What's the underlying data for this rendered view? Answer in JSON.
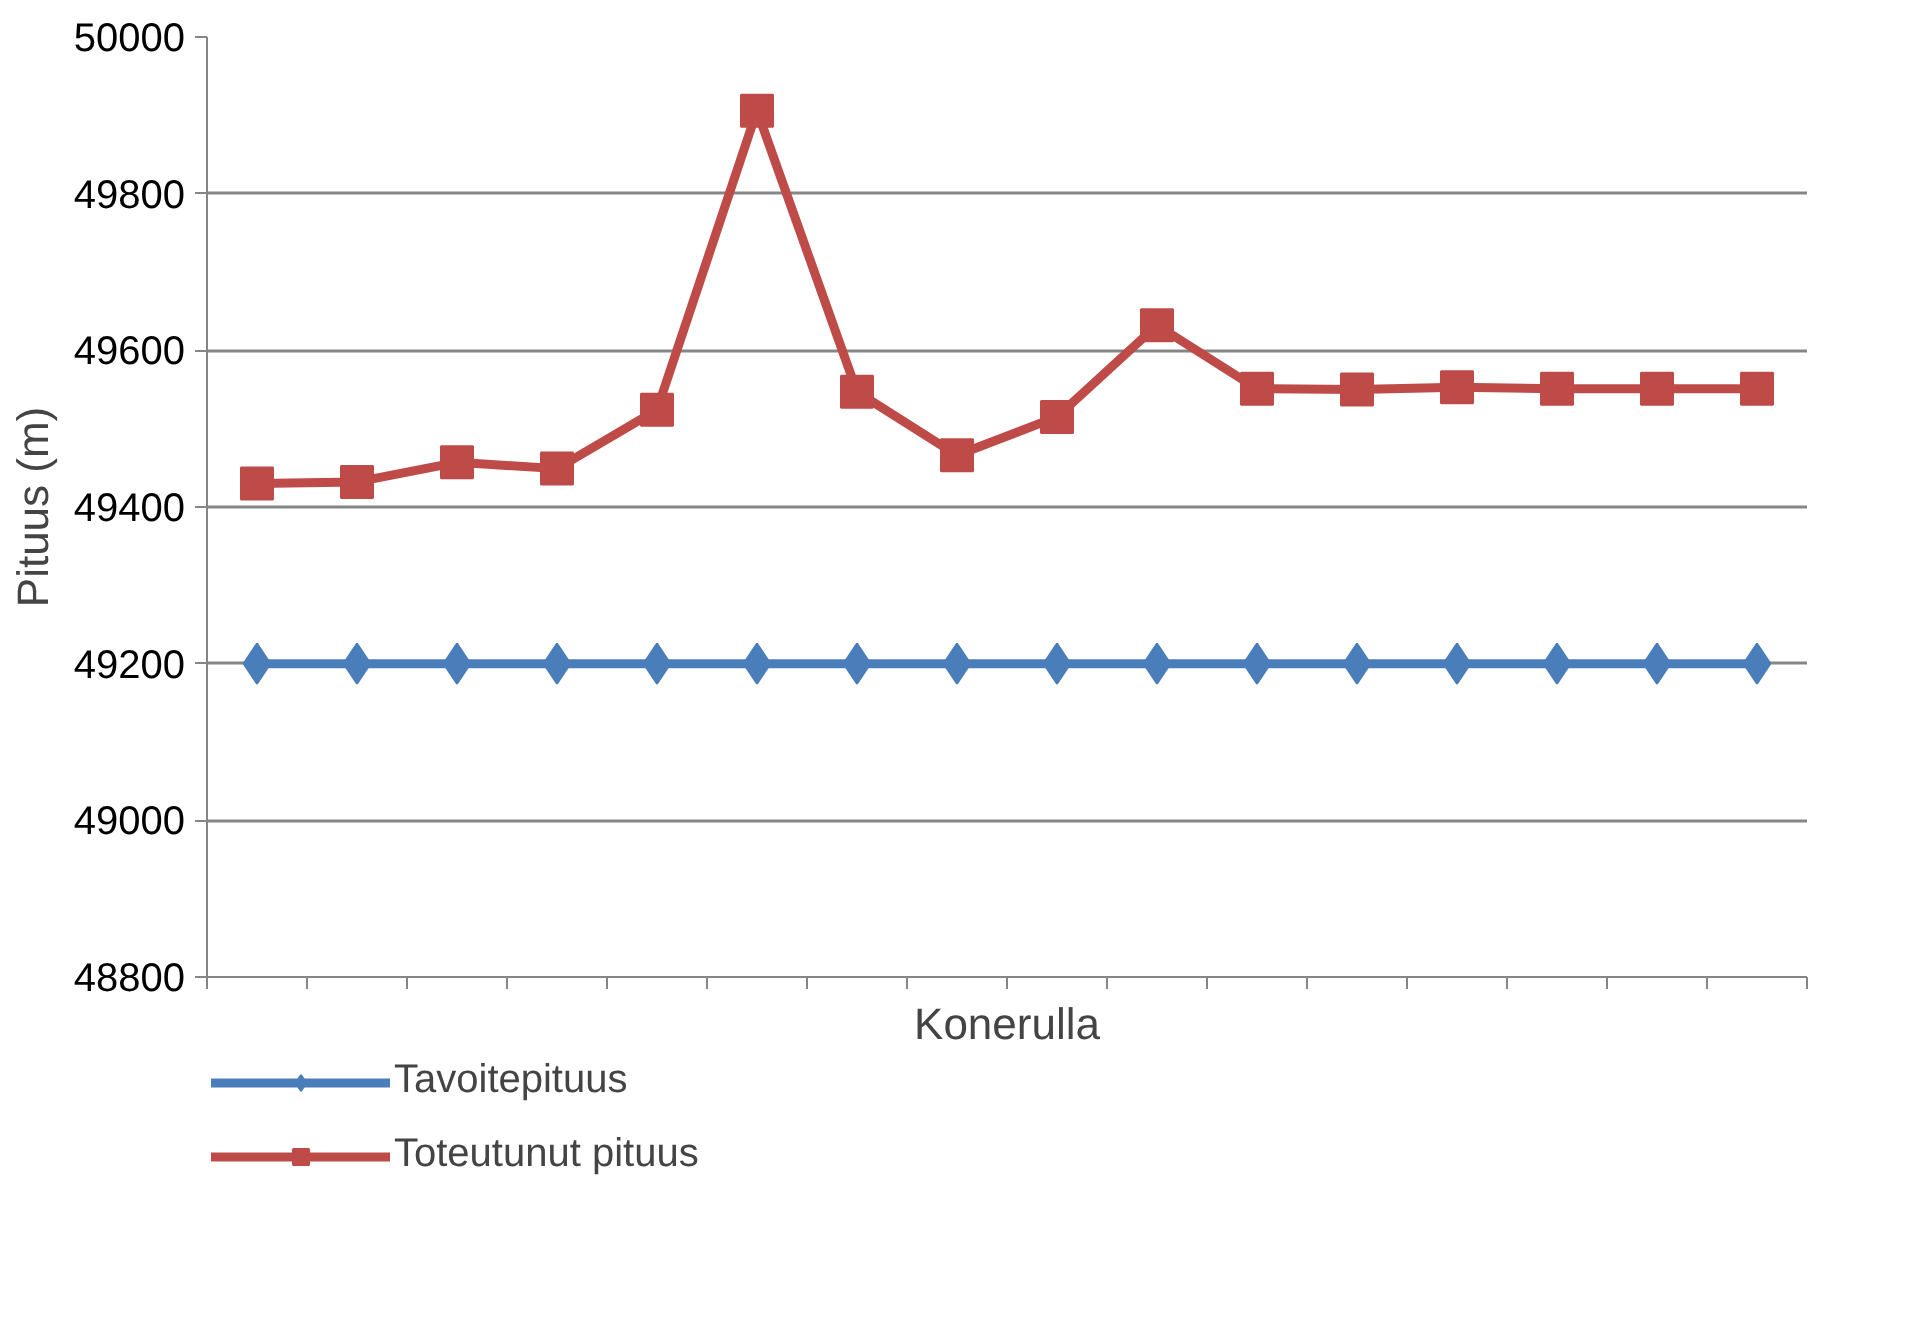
{
  "chart_data": {
    "type": "line",
    "xlabel": "Konerulla",
    "ylabel": "Pituus (m)",
    "categories": [
      null,
      null,
      null,
      null,
      null,
      null,
      null,
      null,
      null,
      null,
      null,
      null,
      null,
      null,
      null,
      null
    ],
    "series": [
      {
        "name": "Tavoitepituus",
        "color": "#4a7ebb",
        "marker": "diamond",
        "values": [
          49200,
          49200,
          49200,
          49200,
          49200,
          49200,
          49200,
          49200,
          49200,
          49200,
          49200,
          49200,
          49200,
          49200,
          49200,
          49200
        ]
      },
      {
        "name": "Toteutunut pituus",
        "color": "#be4b48",
        "marker": "square",
        "values": [
          49430,
          49432,
          49457,
          49449,
          49524,
          49906,
          49547,
          49466,
          49515,
          49632,
          49551,
          49550,
          49553,
          49551,
          49551,
          49551
        ]
      }
    ],
    "ylim": [
      48800,
      50000
    ],
    "yticks": [
      48800,
      49000,
      49200,
      49400,
      49600,
      49800,
      50000
    ],
    "grid": "y",
    "legend": "bottom left",
    "line_style": "solid"
  }
}
